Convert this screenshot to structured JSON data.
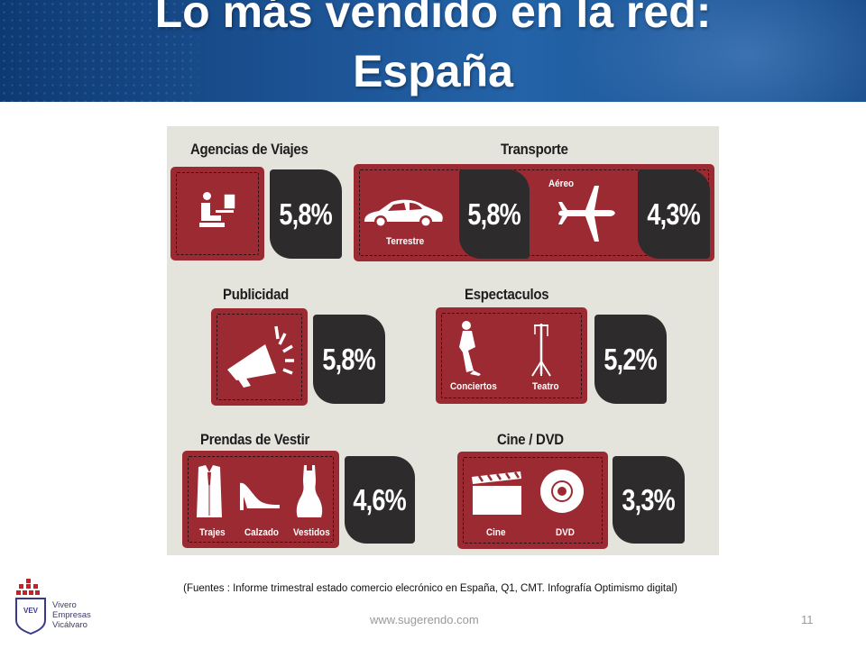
{
  "slide": {
    "title_line1": "Lo más vendido en la red:",
    "title_line2": "España",
    "source_note": "(Fuentes : Informe trimestral estado comercio elecrónico en España,  Q1, CMT. Infografía Optimismo digital)",
    "website": "www.sugerendo.com",
    "page_number": "11"
  },
  "logo": {
    "abbrev": "VEV",
    "line1": "Vivero",
    "line2": "Empresas",
    "line3": "Vicálvaro"
  },
  "infographic": {
    "agencias": {
      "title": "Agencias de Viajes",
      "percent": "5,8%"
    },
    "transporte": {
      "title": "Transporte",
      "terrestre_label": "Terrestre",
      "terrestre_percent": "5,8%",
      "aereo_label": "Aéreo",
      "aereo_percent": "4,3%"
    },
    "publicidad": {
      "title": "Publicidad",
      "percent": "5,8%"
    },
    "espectaculos": {
      "title": "Espectaculos",
      "percent": "5,2%",
      "conciertos_label": "Conciertos",
      "teatro_label": "Teatro"
    },
    "prendas": {
      "title": "Prendas de Vestir",
      "percent": "4,6%",
      "trajes_label": "Trajes",
      "calzado_label": "Calzado",
      "vestidos_label": "Vestidos"
    },
    "cine": {
      "title": "Cine / DVD",
      "percent": "3,3%",
      "cine_label": "Cine",
      "dvd_label": "DVD"
    }
  },
  "colors": {
    "header_blue": "#1a4f8f",
    "panel_red": "#9b2a32",
    "percent_dark": "#2d2b2c",
    "infographic_bg": "#e4e3dc"
  }
}
